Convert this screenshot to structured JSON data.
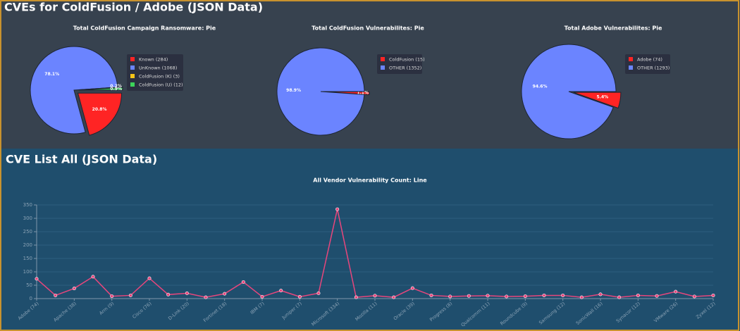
{
  "headings": [
    "CVEs for ColdFusion / Adobe (JSON Data)",
    "CVE List All (JSON Data)"
  ],
  "chart_data": [
    {
      "type": "pie",
      "title": "Total ColdFusion Campaign Ransomware: Pie",
      "categories": [
        "Known (284)",
        "UnKnown (1068)",
        "ColdFusion (K) (3)",
        "ColdFusion (U) (12)"
      ],
      "values": [
        20.8,
        78.1,
        0.2,
        0.9
      ],
      "value_labels": [
        "20.8%",
        "78.1%",
        "0.2%",
        "0.9%"
      ],
      "colors": [
        "#ff2424",
        "#6b84ff",
        "#f5c518",
        "#3cd45a"
      ],
      "explode": [
        true,
        false,
        true,
        true
      ],
      "legend": "right"
    },
    {
      "type": "pie",
      "title": "Total ColdFusion Vulnerabilites: Pie",
      "categories": [
        "ColdFusion (15)",
        "OTHER (1352)"
      ],
      "values": [
        1.1,
        98.9
      ],
      "value_labels": [
        "1.1%",
        "98.9%"
      ],
      "colors": [
        "#ff2424",
        "#6b84ff"
      ],
      "explode": [
        true,
        false
      ],
      "legend": "right"
    },
    {
      "type": "pie",
      "title": "Total Adobe Vulnerabilites: Pie",
      "categories": [
        "Adobe (74)",
        "OTHER (1293)"
      ],
      "values": [
        5.4,
        94.6
      ],
      "value_labels": [
        "5.4%",
        "94.6%"
      ],
      "colors": [
        "#ff2424",
        "#6b84ff"
      ],
      "explode": [
        true,
        false
      ],
      "legend": "right"
    },
    {
      "type": "line",
      "title": "All Vendor Vulnerability Count: Line",
      "categories": [
        "Adobe (74)",
        null,
        "Apache (38)",
        null,
        "Arm (9)",
        null,
        "Cisco (76)",
        null,
        "D-Link (20)",
        null,
        "Fortinet (18)",
        null,
        "IBM (7)",
        null,
        "Juniper (7)",
        null,
        "Microsoft (334)",
        null,
        "Mozilla (11)",
        null,
        "Oracle (39)",
        null,
        "Progress (8)",
        null,
        "Qualcomm (11)",
        null,
        "Roundcube (9)",
        null,
        "Samsung (12)",
        null,
        "SonicWall (16)",
        null,
        "Synacor (12)",
        null,
        "VMware (26)",
        null,
        "Zyxel (12)"
      ],
      "values": [
        74,
        12,
        38,
        82,
        9,
        12,
        76,
        15,
        20,
        5,
        18,
        62,
        7,
        30,
        7,
        20,
        334,
        5,
        11,
        5,
        39,
        12,
        8,
        10,
        11,
        8,
        9,
        12,
        12,
        5,
        16,
        5,
        12,
        10,
        26,
        8,
        12
      ],
      "color": "#e8467c",
      "ylim": [
        0,
        350
      ],
      "yticks": [
        0,
        50,
        100,
        150,
        200,
        250,
        300,
        350
      ],
      "grid": true
    }
  ]
}
